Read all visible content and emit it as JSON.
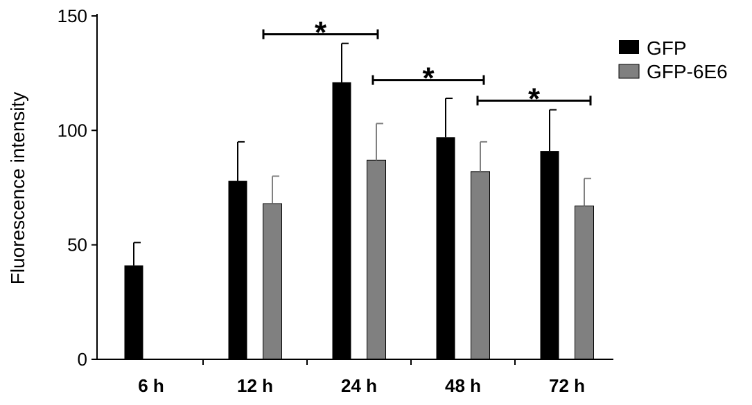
{
  "chart_data": {
    "type": "bar",
    "ylabel": "Fluorescence intensity",
    "xlabel": "",
    "ylim": [
      0,
      150
    ],
    "yticks": [
      "0",
      "50",
      "100",
      "150"
    ],
    "categories": [
      "6 h",
      "12 h",
      "24 h",
      "48 h",
      "72 h"
    ],
    "series": [
      {
        "name": "GFP",
        "color": "#000000",
        "values": [
          41,
          78,
          121,
          97,
          91
        ],
        "errors": [
          10,
          17,
          17,
          17,
          18
        ]
      },
      {
        "name": "GFP-6E6",
        "color": "#808080",
        "values": [
          null,
          68,
          87,
          82,
          67
        ],
        "errors": [
          null,
          12,
          16,
          13,
          12
        ]
      }
    ],
    "legend": {
      "placement": "top-right"
    },
    "significance": [
      {
        "label": "*",
        "from": "12 h",
        "to": "24 h"
      },
      {
        "label": "*",
        "from": "24 h",
        "to": "48 h"
      },
      {
        "label": "*",
        "from": "48 h",
        "to": "72 h"
      }
    ],
    "grid": false
  }
}
